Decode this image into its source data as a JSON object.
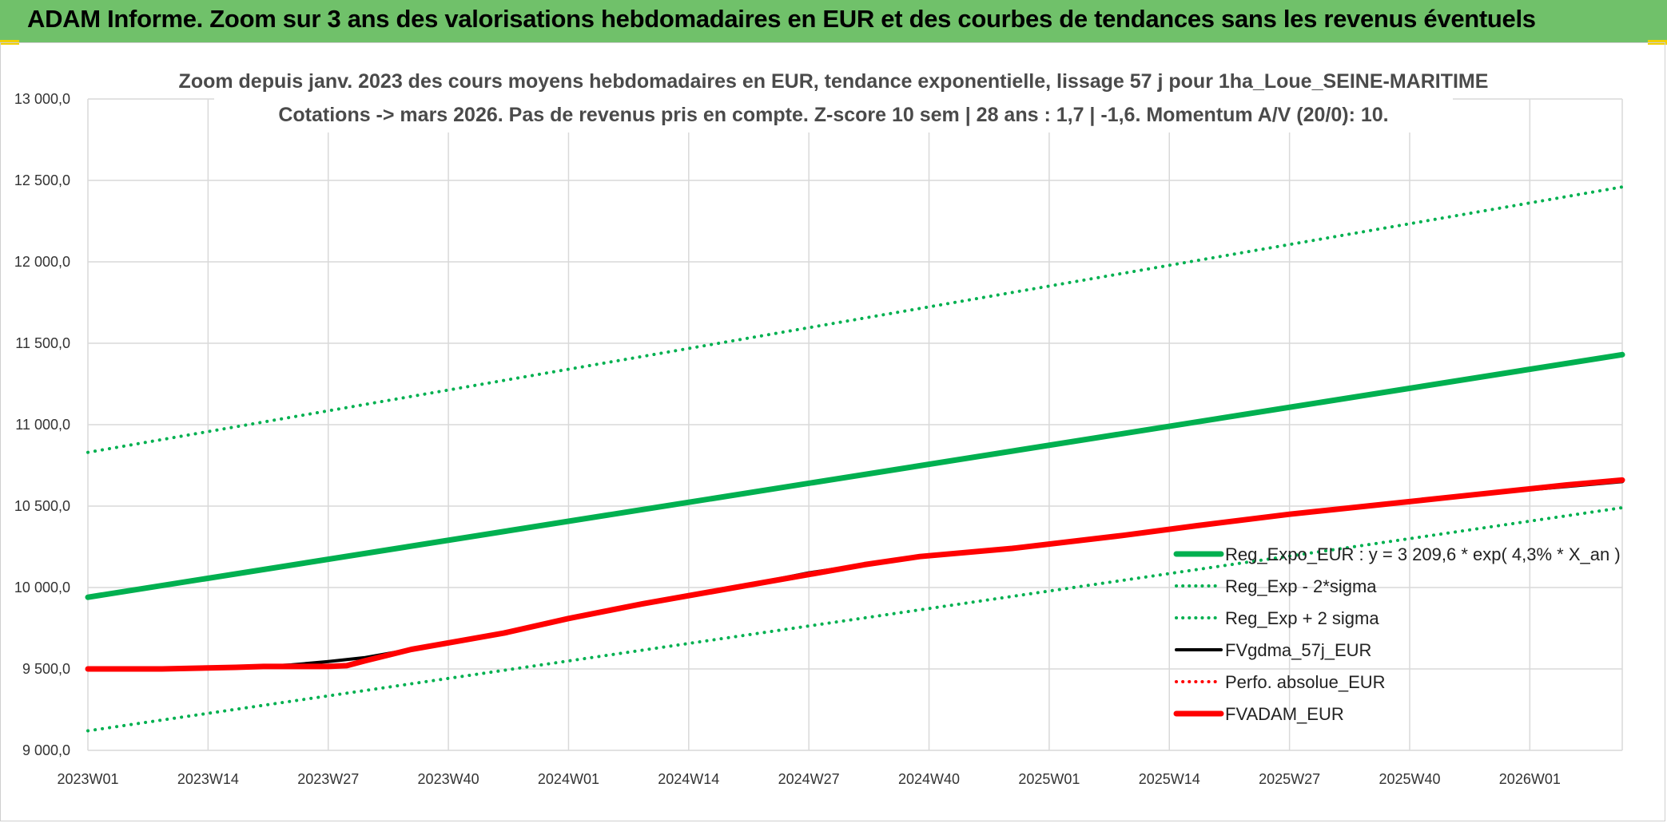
{
  "header": {
    "title": "ADAM Informe. Zoom sur 3 ans des valorisations hebdomadaires en EUR et des courbes de tendances sans les revenus éventuels"
  },
  "chart_data": {
    "type": "line",
    "title_line1": "Zoom depuis janv. 2023 des cours moyens hebdomadaires en EUR, tendance exponentielle, lissage 57 j pour 1ha_Loue_SEINE-MARITIME",
    "title_line2": "Cotations -> mars 2026. Pas de revenus pris en compte. Z-score 10 sem | 28 ans : 1,7 | -1,6. Momentum A/V (20/0): 10.",
    "x_categories": [
      "2023W01",
      "2023W14",
      "2023W27",
      "2023W40",
      "2024W01",
      "2024W14",
      "2024W27",
      "2024W40",
      "2025W01",
      "2025W14",
      "2025W27",
      "2025W40",
      "2026W01"
    ],
    "x_unit": "weeks since 2023W01",
    "x_end": 166,
    "y_tick_labels": [
      "9 000,0",
      "9 500,0",
      "10 000,0",
      "10 500,0",
      "11 000,0",
      "11 500,0",
      "12 000,0",
      "12 500,0",
      "13 000,0"
    ],
    "ylim": [
      9000,
      13000
    ],
    "grid": true,
    "legend_position": "right",
    "colors": {
      "green": "#00b050",
      "red": "#ff0000",
      "black": "#000000"
    },
    "series": [
      {
        "name": "Reg_Expo_EUR : y = 3 209,6 * exp( 4,3% *  X_an )",
        "style": "solid",
        "color": "#00b050",
        "x": [
          0,
          166
        ],
        "y": [
          9940,
          11430
        ]
      },
      {
        "name": "Reg_Exp - 2*sigma",
        "style": "dotted",
        "color": "#00b050",
        "x": [
          0,
          166
        ],
        "y": [
          9120,
          10490
        ]
      },
      {
        "name": "Reg_Exp + 2 sigma",
        "style": "dotted",
        "color": "#00b050",
        "x": [
          0,
          166
        ],
        "y": [
          10830,
          12460
        ]
      },
      {
        "name": "FVgdma_57j_EUR",
        "style": "solid",
        "color": "#000000",
        "x": [
          0,
          8,
          16,
          19,
          22,
          26,
          30,
          35,
          40,
          45,
          52,
          60,
          70,
          78,
          84,
          90,
          100,
          112,
          120,
          130,
          140,
          150,
          160,
          166
        ],
        "y": [
          9500,
          9500,
          9510,
          9515,
          9525,
          9545,
          9570,
          9620,
          9670,
          9720,
          9810,
          9900,
          10000,
          10090,
          10140,
          10190,
          10240,
          10320,
          10380,
          10450,
          10510,
          10570,
          10620,
          10650
        ]
      },
      {
        "name": "Perfo. absolue_EUR",
        "style": "dotted",
        "color": "#ff0000",
        "x": [],
        "y": []
      },
      {
        "name": "FVADAM_EUR",
        "style": "solid",
        "color": "#ff0000",
        "x": [
          0,
          8,
          16,
          19,
          22,
          26,
          28,
          30,
          35,
          40,
          45,
          52,
          60,
          70,
          78,
          84,
          90,
          100,
          112,
          120,
          130,
          140,
          150,
          160,
          166
        ],
        "y": [
          9500,
          9500,
          9510,
          9515,
          9515,
          9515,
          9520,
          9550,
          9620,
          9670,
          9720,
          9810,
          9900,
          10000,
          10080,
          10140,
          10190,
          10240,
          10320,
          10380,
          10450,
          10510,
          10570,
          10630,
          10660
        ]
      }
    ]
  }
}
